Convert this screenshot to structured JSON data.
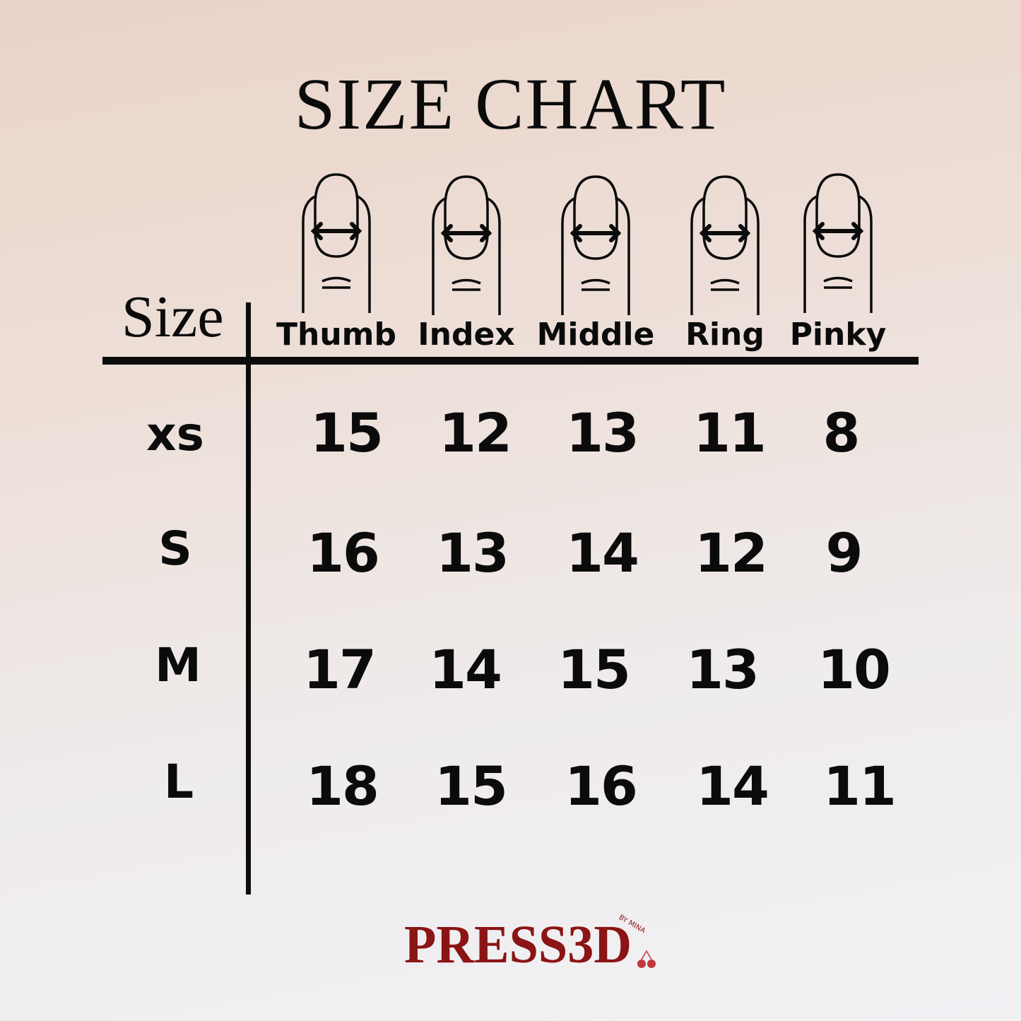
{
  "title": "SIZE CHART",
  "size_header": "Size",
  "columns": [
    "Thumb",
    "Index",
    "Middle",
    "Ring",
    "Pinky"
  ],
  "rows": [
    {
      "size": "xs",
      "values": [
        "15",
        "12",
        "13",
        "11",
        "8"
      ]
    },
    {
      "size": "S",
      "values": [
        "16",
        "13",
        "14",
        "12",
        "9"
      ]
    },
    {
      "size": "M",
      "values": [
        "17",
        "14",
        "15",
        "13",
        "10"
      ]
    },
    {
      "size": "L",
      "values": [
        "18",
        "15",
        "16",
        "14",
        "11"
      ]
    }
  ],
  "icons": {
    "finger": "finger-nail-width-icon"
  },
  "logo": {
    "text": "PRESS3D",
    "sub": "BY MINA",
    "color": "#8b1414"
  }
}
